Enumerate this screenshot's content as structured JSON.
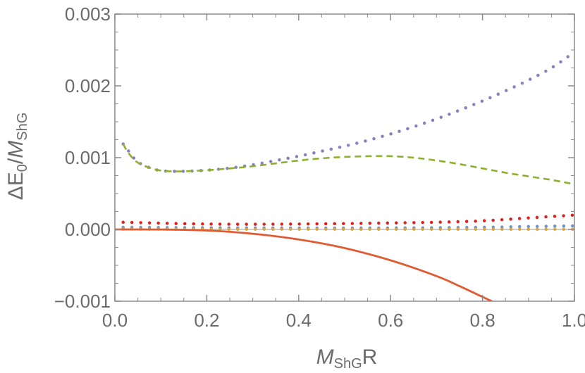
{
  "chart_data": {
    "type": "line",
    "title": "",
    "xlabel": {
      "main": "M",
      "sub": "ShG",
      "tail": "R"
    },
    "ylabel": {
      "delta": "ΔE",
      "delta_sub": "0",
      "slash": "/",
      "main": "M",
      "sub": "ShG"
    },
    "xlim": [
      0.0,
      1.0
    ],
    "ylim": [
      -0.001,
      0.003
    ],
    "xticks": [
      "0.0",
      "0.2",
      "0.4",
      "0.6",
      "0.8",
      "1.0"
    ],
    "yticks": [
      "−0.001",
      "0.000",
      "0.001",
      "0.002",
      "0.003"
    ],
    "grid": false,
    "series": [
      {
        "name": "purple-dotted",
        "style": "dotted",
        "color": "#8a7fbf",
        "x": [
          0.018,
          0.03,
          0.05,
          0.08,
          0.1,
          0.12,
          0.15,
          0.2,
          0.25,
          0.3,
          0.35,
          0.4,
          0.45,
          0.5,
          0.55,
          0.6,
          0.65,
          0.7,
          0.75,
          0.8,
          0.85,
          0.9,
          0.95,
          1.0
        ],
        "y": [
          0.00119,
          0.00109,
          0.00094,
          0.00085,
          0.00082,
          0.00081,
          0.00081,
          0.000825,
          0.000855,
          0.0009,
          0.00096,
          0.00102,
          0.00109,
          0.00116,
          0.00124,
          0.00133,
          0.00143,
          0.00154,
          0.00166,
          0.00179,
          0.00193,
          0.00208,
          0.00225,
          0.00247
        ]
      },
      {
        "name": "green-dashed",
        "style": "dashed",
        "color": "#8eb02f",
        "x": [
          0.018,
          0.03,
          0.05,
          0.08,
          0.1,
          0.12,
          0.15,
          0.2,
          0.25,
          0.3,
          0.35,
          0.4,
          0.45,
          0.5,
          0.55,
          0.6,
          0.65,
          0.7,
          0.75,
          0.8,
          0.85,
          0.9,
          0.95,
          1.0
        ],
        "y": [
          0.00119,
          0.00106,
          0.00093,
          0.00085,
          0.00082,
          0.00081,
          0.00081,
          0.000825,
          0.00085,
          0.00088,
          0.00092,
          0.00096,
          0.00099,
          0.00101,
          0.00102,
          0.00102,
          0.001,
          0.00096,
          0.00091,
          0.00085,
          0.00079,
          0.00074,
          0.00069,
          0.00063
        ]
      },
      {
        "name": "red-dotted",
        "style": "dotted",
        "color": "#e0201c",
        "x": [
          0.018,
          0.2,
          0.4,
          0.6,
          0.7,
          0.8,
          0.9,
          1.0
        ],
        "y": [
          0.0001,
          7.5e-05,
          7.5e-05,
          9e-05,
          0.0001,
          0.00012,
          0.00016,
          0.0002
        ]
      },
      {
        "name": "blue-dotted",
        "style": "dotted",
        "color": "#6f93c9",
        "x": [
          0.018,
          0.3,
          0.6,
          0.8,
          0.9,
          1.0
        ],
        "y": [
          3e-05,
          2e-05,
          2e-05,
          3e-05,
          4e-05,
          5e-05
        ]
      },
      {
        "name": "gold-dotted",
        "style": "dotted",
        "color": "#d7a33a",
        "x": [
          0.018,
          0.5,
          1.0
        ],
        "y": [
          5e-06,
          3e-06,
          3e-06
        ]
      },
      {
        "name": "orange-solid",
        "style": "solid",
        "color": "#e05a32",
        "x": [
          0.0,
          0.1,
          0.2,
          0.3,
          0.4,
          0.5,
          0.6,
          0.7,
          0.75,
          0.8,
          0.82
        ],
        "y": [
          0.0,
          -1e-06,
          -1.5e-05,
          -6e-05,
          -0.00014,
          -0.00026,
          -0.00043,
          -0.00065,
          -0.00079,
          -0.00094,
          -0.001
        ]
      }
    ]
  }
}
